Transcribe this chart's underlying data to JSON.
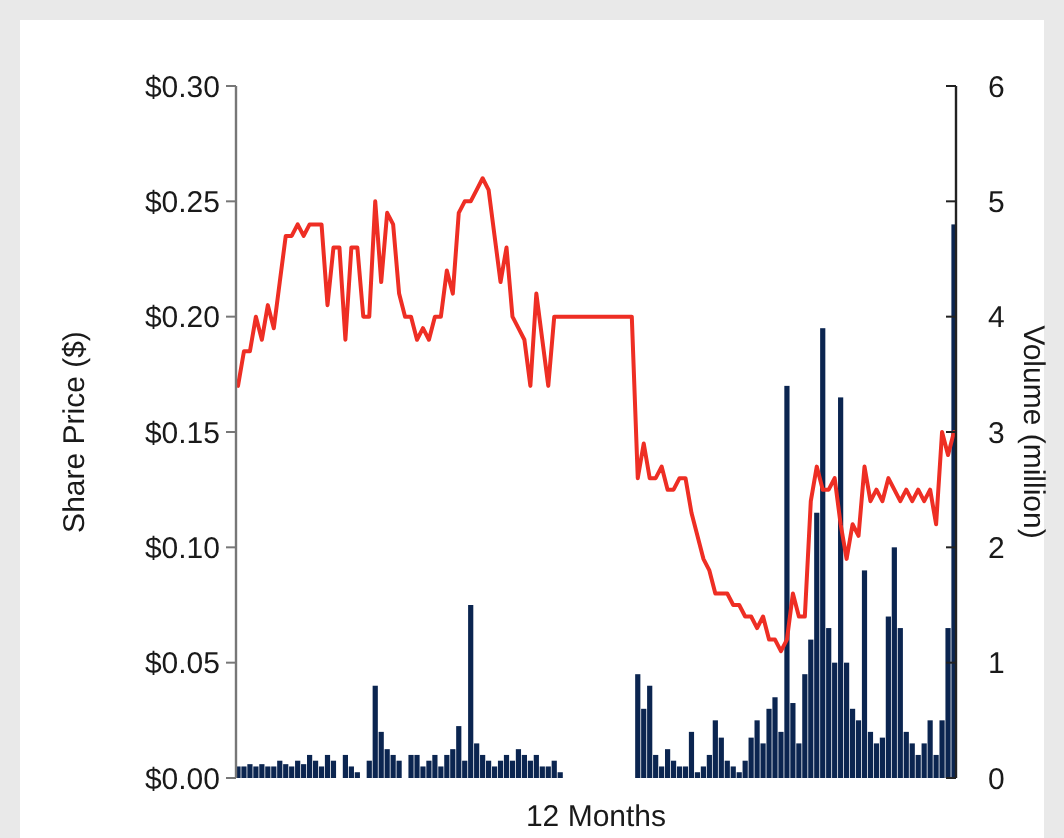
{
  "chart_data": {
    "type": "line",
    "xlabel": "12 Months",
    "ylabel": "Share Price ($)",
    "y2label": "Volume (million)",
    "categories": [
      null,
      null,
      null,
      null,
      null,
      null,
      null,
      null,
      null,
      null,
      null,
      null,
      null,
      null,
      null,
      null,
      null,
      null,
      null,
      null,
      null,
      null,
      null,
      null,
      null,
      null,
      null,
      null,
      null,
      null,
      null,
      null,
      null,
      null,
      null,
      null,
      null,
      null,
      null,
      null,
      null,
      null,
      null,
      null,
      null,
      null,
      null,
      null,
      null,
      null,
      null,
      null,
      null,
      null,
      null,
      null,
      null,
      null,
      null,
      null,
      null,
      null,
      null,
      null,
      null,
      null,
      null,
      null,
      null,
      null,
      null,
      null,
      null,
      null,
      null,
      null,
      null,
      null,
      null,
      null,
      null,
      null,
      null,
      null,
      null,
      null,
      null,
      null,
      null,
      null,
      null,
      null,
      null,
      null,
      null,
      null,
      null,
      null,
      null,
      null,
      null,
      null,
      null,
      null,
      null,
      null,
      null,
      null,
      null,
      null,
      null,
      null,
      null,
      null,
      null,
      null,
      null,
      null,
      null,
      null,
      null
    ],
    "series": [
      {
        "type": "bar",
        "axis": "y2",
        "color": "#0b2550",
        "values": [
          0.1,
          0.1,
          0.12,
          0.1,
          0.12,
          0.1,
          0.1,
          0.15,
          0.12,
          0.1,
          0.15,
          0.12,
          0.2,
          0.15,
          0.1,
          0.2,
          0.15,
          null,
          0.2,
          0.1,
          0.05,
          null,
          0.15,
          0.8,
          0.4,
          0.25,
          0.2,
          0.15,
          null,
          0.2,
          0.2,
          0.1,
          0.15,
          0.2,
          0.1,
          0.2,
          0.25,
          0.45,
          0.15,
          1.5,
          0.3,
          0.2,
          0.15,
          0.1,
          0.15,
          0.2,
          0.15,
          0.25,
          0.2,
          0.15,
          0.2,
          0.1,
          0.1,
          0.15,
          0.05,
          null,
          null,
          null,
          null,
          null,
          null,
          null,
          null,
          null,
          null,
          null,
          null,
          0.9,
          0.6,
          0.8,
          0.2,
          0.1,
          0.25,
          0.15,
          0.1,
          0.1,
          0.4,
          0.05,
          0.1,
          0.2,
          0.5,
          0.35,
          0.15,
          0.1,
          0.05,
          0.15,
          0.35,
          0.5,
          0.3,
          0.6,
          0.7,
          0.4,
          3.4,
          0.65,
          0.3,
          0.9,
          1.2,
          2.3,
          3.9,
          1.3,
          1.0,
          3.3,
          1.0,
          0.6,
          0.5,
          1.8,
          0.4,
          0.3,
          0.35,
          1.4,
          2.0,
          1.3,
          0.4,
          0.3,
          0.2,
          0.3,
          0.5,
          0.2,
          0.5,
          1.3,
          4.8
        ]
      },
      {
        "color": "#ee2e24",
        "values": [
          0.17,
          0.185,
          0.185,
          0.2,
          0.19,
          0.205,
          0.195,
          0.215,
          0.235,
          0.235,
          0.24,
          0.235,
          0.24,
          0.24,
          0.24,
          0.205,
          0.23,
          0.23,
          0.19,
          0.23,
          0.23,
          0.2,
          0.2,
          0.25,
          0.215,
          0.245,
          0.24,
          0.21,
          0.2,
          0.2,
          0.19,
          0.195,
          0.19,
          0.2,
          0.2,
          0.22,
          0.21,
          0.245,
          0.25,
          0.25,
          0.255,
          0.26,
          0.255,
          0.235,
          0.215,
          0.23,
          0.2,
          0.195,
          0.19,
          0.17,
          0.21,
          0.19,
          0.17,
          0.2,
          0.2,
          0.2,
          0.2,
          0.2,
          0.2,
          0.2,
          0.2,
          0.2,
          0.2,
          0.2,
          0.2,
          0.2,
          0.2,
          0.13,
          0.145,
          0.13,
          0.13,
          0.135,
          0.125,
          0.125,
          0.13,
          0.13,
          0.115,
          0.105,
          0.095,
          0.09,
          0.08,
          0.08,
          0.08,
          0.075,
          0.075,
          0.07,
          0.07,
          0.065,
          0.07,
          0.06,
          0.06,
          0.055,
          0.06,
          0.08,
          0.07,
          0.07,
          0.12,
          0.135,
          0.125,
          0.125,
          0.13,
          0.11,
          0.095,
          0.11,
          0.105,
          0.135,
          0.12,
          0.125,
          0.12,
          0.13,
          0.125,
          0.12,
          0.125,
          0.12,
          0.125,
          0.12,
          0.125,
          0.11,
          0.15,
          0.14,
          0.15
        ]
      }
    ],
    "ylim": [
      0,
      0.3
    ],
    "yticks": [
      {
        "value": 0,
        "label": "$0.00"
      },
      {
        "value": 0.05,
        "label": "$0.05"
      },
      {
        "value": 0.1,
        "label": "$0.10"
      },
      {
        "value": 0.15,
        "label": "$0.15"
      },
      {
        "value": 0.2,
        "label": "$0.20"
      },
      {
        "value": 0.25,
        "label": "$0.25"
      },
      {
        "value": 0.3,
        "label": "$0.30"
      }
    ],
    "y2lim": [
      0,
      6
    ],
    "y2ticks": [
      0,
      1,
      2,
      3,
      4,
      5,
      6
    ]
  }
}
